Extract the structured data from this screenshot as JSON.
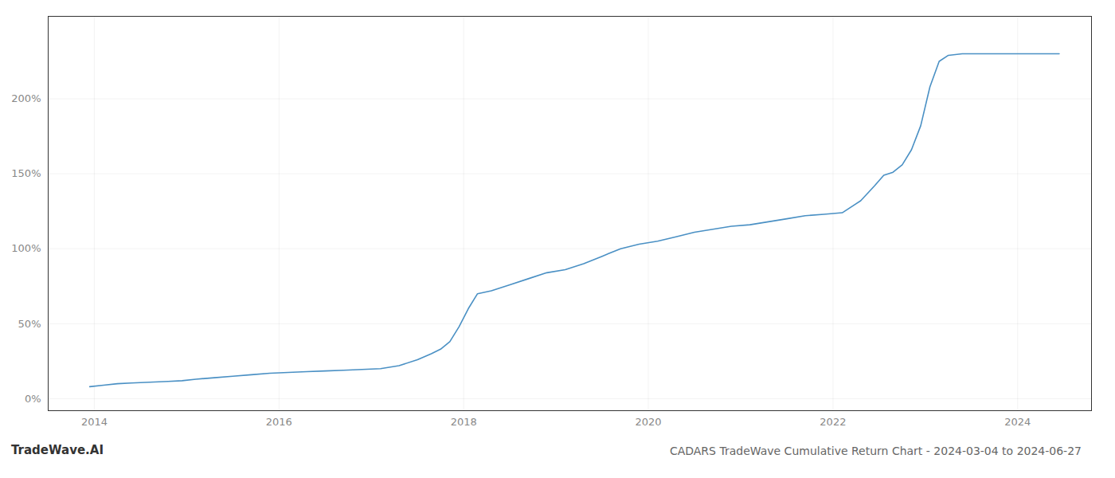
{
  "chart_data": {
    "type": "line",
    "title": "CADARS TradeWave Cumulative Return Chart - 2024-03-04 to 2024-06-27",
    "annotations": [
      "TradeWave.AI"
    ],
    "color": "#4a90c4",
    "grid": true,
    "xlim": [
      2013.5,
      2024.8
    ],
    "xticks": [
      2014,
      2016,
      2018,
      2020,
      2022,
      2024
    ],
    "ylim": [
      -8,
      255
    ],
    "yticks": [
      {
        "value": 0,
        "label": "0%"
      },
      {
        "value": 50,
        "label": "50%"
      },
      {
        "value": 100,
        "label": "100%"
      },
      {
        "value": 150,
        "label": "150%"
      },
      {
        "value": 200,
        "label": "200%"
      }
    ],
    "x": [
      2013.95,
      2014.1,
      2014.25,
      2014.4,
      2014.6,
      2014.8,
      2014.95,
      2015.1,
      2015.3,
      2015.5,
      2015.7,
      2015.9,
      2016.1,
      2016.3,
      2016.5,
      2016.7,
      2016.9,
      2017.1,
      2017.3,
      2017.5,
      2017.65,
      2017.75,
      2017.85,
      2017.95,
      2018.05,
      2018.15,
      2018.3,
      2018.5,
      2018.7,
      2018.9,
      2019.1,
      2019.3,
      2019.5,
      2019.7,
      2019.9,
      2020.1,
      2020.3,
      2020.5,
      2020.7,
      2020.9,
      2021.1,
      2021.3,
      2021.5,
      2021.7,
      2021.9,
      2022.1,
      2022.3,
      2022.45,
      2022.55,
      2022.65,
      2022.75,
      2022.85,
      2022.95,
      2023.05,
      2023.15,
      2023.25,
      2023.4,
      2023.6,
      2023.8,
      2024.0,
      2024.2,
      2024.45
    ],
    "values": [
      8,
      9,
      10,
      10.5,
      11,
      11.5,
      12,
      13,
      14,
      15,
      16,
      17,
      17.5,
      18,
      18.5,
      19,
      19.5,
      20,
      22,
      26,
      30,
      33,
      38,
      48,
      60,
      70,
      72,
      76,
      80,
      84,
      86,
      90,
      95,
      100,
      103,
      105,
      108,
      111,
      113,
      115,
      116,
      118,
      120,
      122,
      123,
      124,
      132,
      142,
      149,
      151,
      156,
      166,
      182,
      208,
      225,
      229,
      230,
      230,
      230,
      230,
      230,
      230
    ]
  }
}
